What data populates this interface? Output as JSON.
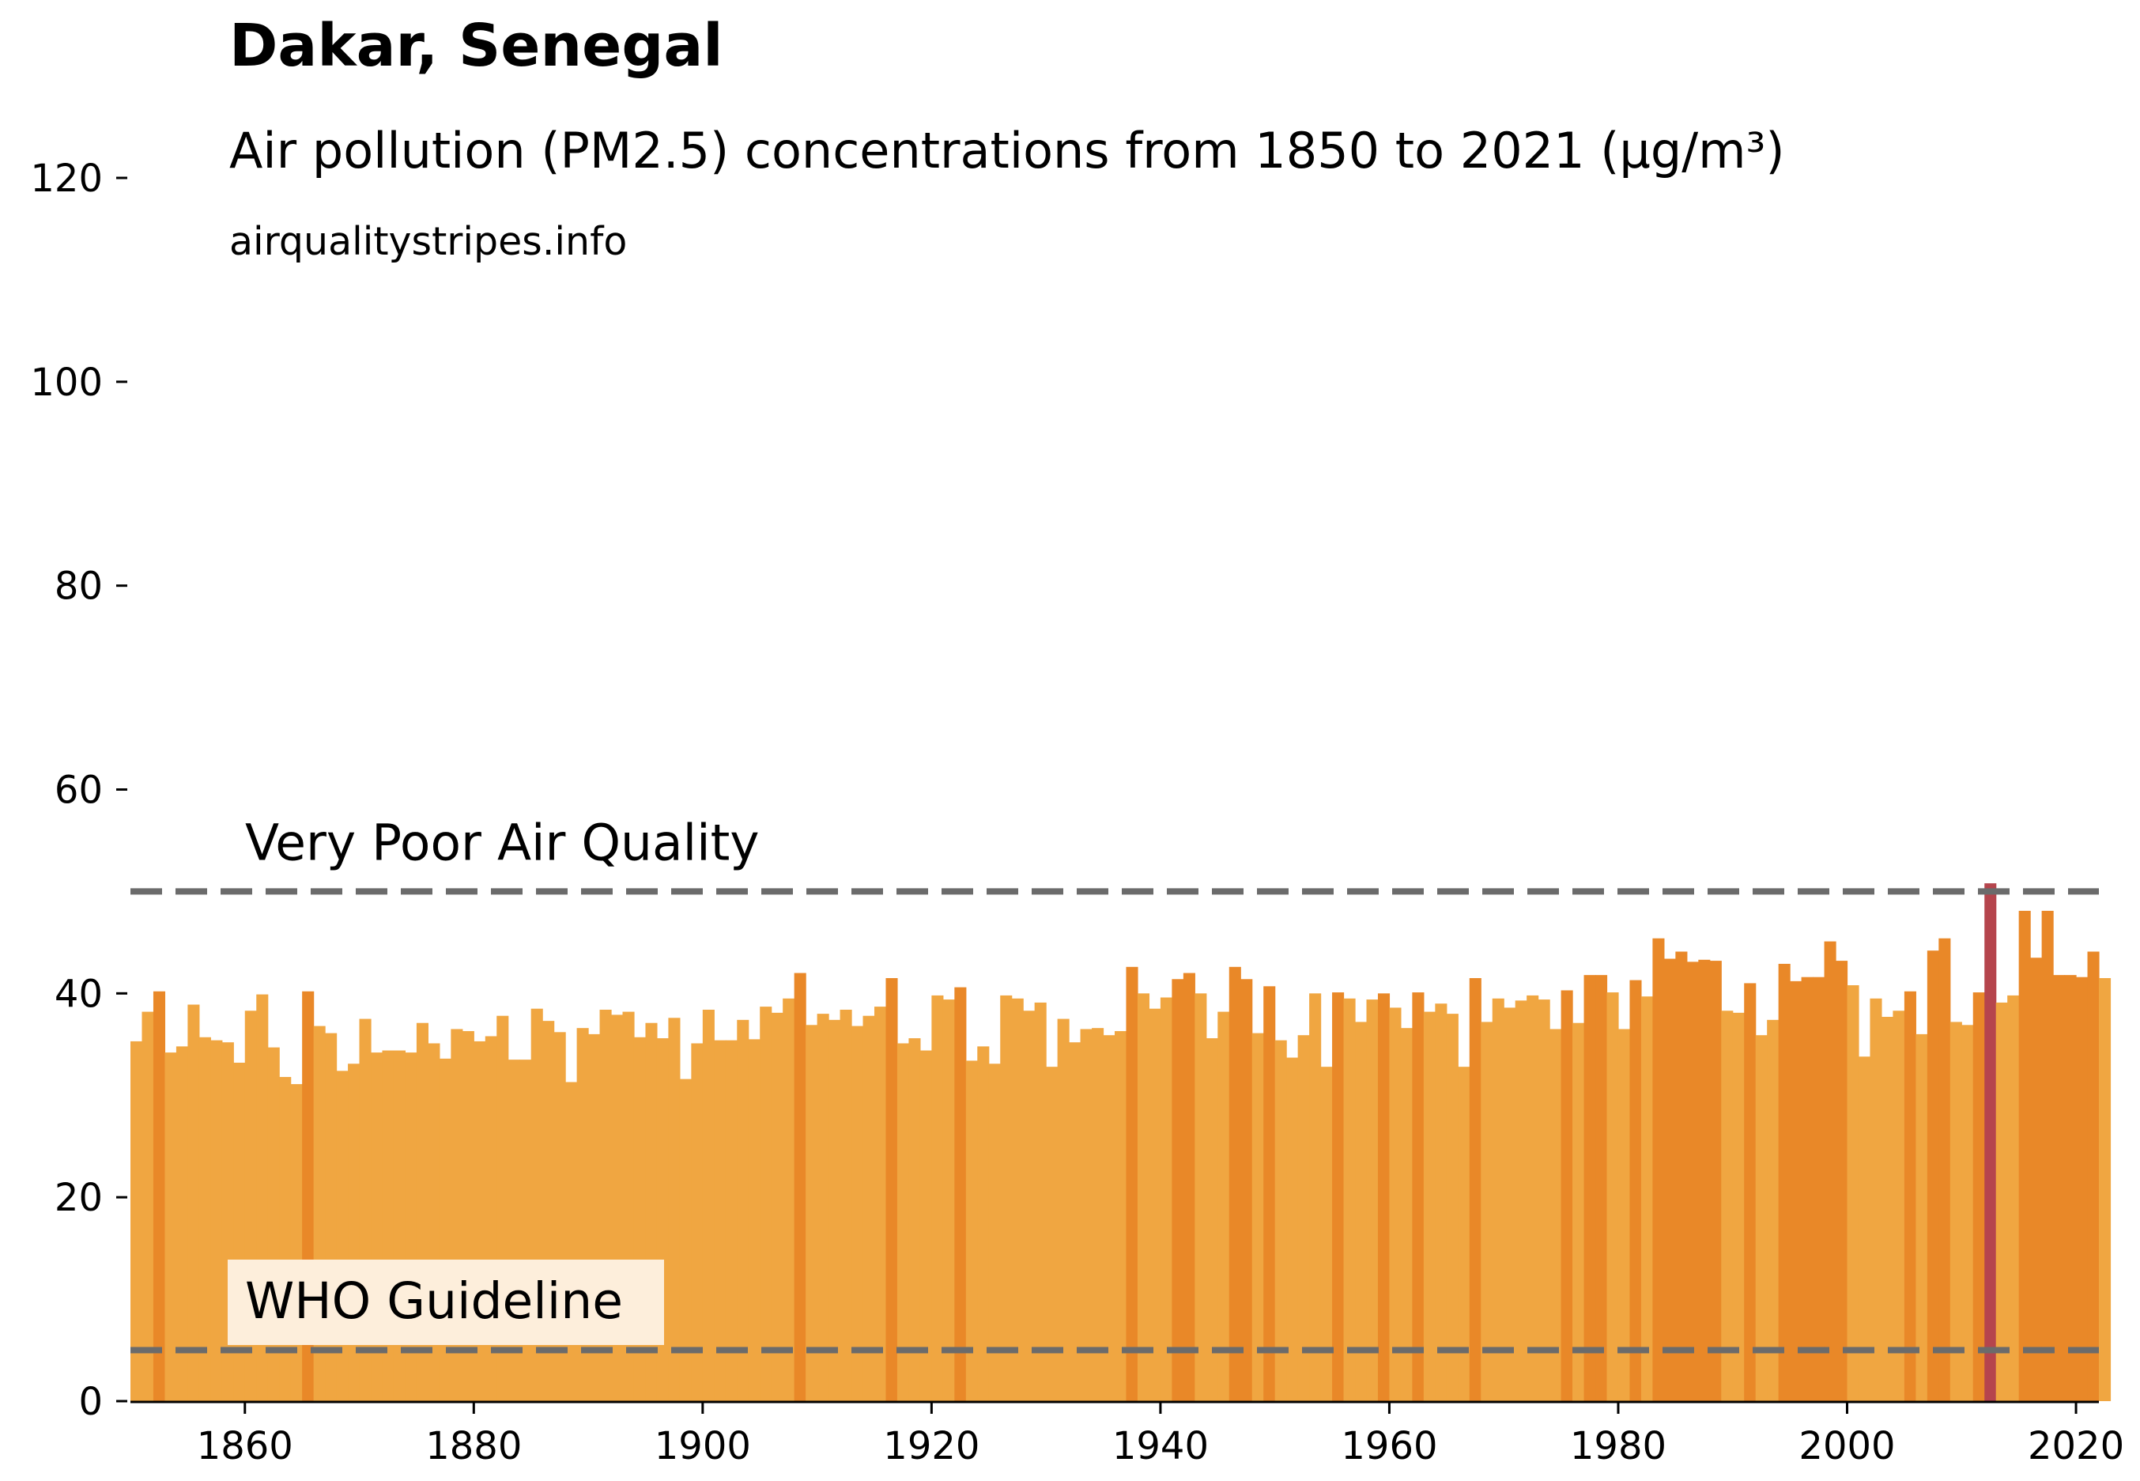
{
  "chart_data": {
    "type": "bar",
    "title": "Dakar, Senegal",
    "subtitle": "Air pollution (PM2.5) concentrations from 1850 to 2021 (µg/m³)",
    "source": "airqualitystripes.info",
    "xlabel": "",
    "ylabel": "",
    "xlim": [
      1850,
      2022
    ],
    "ylim": [
      0,
      120
    ],
    "x_ticks": [
      1860,
      1880,
      1900,
      1920,
      1940,
      1960,
      1980,
      2000,
      2020
    ],
    "y_ticks": [
      0,
      20,
      40,
      60,
      80,
      100,
      120
    ],
    "grid": false,
    "legend": "none",
    "x_start": 1850,
    "values": [
      35.3,
      38.2,
      40.2,
      34.2,
      34.8,
      38.9,
      35.7,
      35.4,
      35.2,
      33.2,
      38.3,
      39.9,
      34.7,
      31.8,
      31.1,
      40.2,
      36.8,
      36.1,
      32.4,
      33.1,
      37.5,
      34.2,
      34.4,
      34.4,
      34.2,
      37.1,
      35.1,
      33.6,
      36.5,
      36.3,
      35.3,
      35.8,
      37.8,
      33.5,
      33.5,
      38.5,
      37.3,
      36.2,
      31.3,
      36.6,
      36.0,
      38.4,
      37.9,
      38.2,
      35.7,
      37.1,
      35.6,
      37.6,
      31.6,
      35.1,
      38.4,
      35.4,
      35.4,
      37.4,
      35.5,
      38.7,
      38.1,
      39.5,
      42.0,
      36.9,
      38.0,
      37.4,
      38.4,
      36.8,
      37.8,
      38.7,
      41.5,
      35.1,
      35.6,
      34.4,
      39.8,
      39.4,
      40.6,
      33.4,
      34.8,
      33.1,
      39.8,
      39.5,
      38.3,
      39.1,
      32.8,
      37.5,
      35.2,
      36.5,
      36.6,
      35.9,
      36.3,
      42.6,
      40.0,
      38.5,
      39.6,
      41.4,
      42.0,
      40.0,
      35.6,
      38.2,
      42.6,
      41.4,
      36.1,
      40.7,
      35.4,
      33.7,
      35.9,
      40.0,
      32.8,
      40.1,
      39.5,
      37.2,
      39.4,
      40.0,
      38.6,
      36.6,
      40.1,
      38.2,
      39.0,
      38.0,
      32.8,
      41.5,
      37.2,
      39.5,
      38.6,
      39.3,
      39.8,
      39.4,
      36.5,
      40.3,
      37.1,
      41.8,
      41.8,
      40.1,
      36.5,
      41.3,
      39.7,
      45.4,
      43.4,
      44.1,
      43.1,
      43.3,
      43.2,
      38.3,
      38.1,
      41.0,
      35.9,
      37.4,
      42.9,
      41.2,
      41.6,
      41.6,
      45.1,
      43.2,
      40.8,
      33.8,
      39.5,
      37.7,
      38.3,
      40.2,
      36.0,
      44.2,
      45.4,
      37.2,
      36.9,
      40.1,
      50.8,
      39.1,
      39.8,
      48.1,
      43.5,
      48.1,
      41.8,
      41.8,
      41.6,
      44.1,
      41.5
    ],
    "highlighted_years": [
      1852,
      1865,
      1908,
      1916,
      1922,
      1937,
      1941,
      1942,
      1946,
      1947,
      1949,
      1955,
      1959,
      1962,
      1967,
      1975,
      1977,
      1978,
      1981,
      1983,
      1984,
      1985,
      1986,
      1987,
      1988,
      1991,
      1994,
      1995,
      1996,
      1997,
      1998,
      1999,
      2005,
      2007,
      2008,
      2011,
      2015,
      2016,
      2017,
      2018,
      2019,
      2020,
      2021
    ],
    "marked_year": 2012,
    "reference_lines": [
      {
        "label": "Very Poor Air Quality",
        "value": 50
      },
      {
        "label": "WHO Guideline",
        "value": 5
      }
    ],
    "colors": {
      "bar": "#f0a641",
      "bar_highlight": "#e98828",
      "marked_bar": "#b5454d",
      "reference_line": "#6b6b6b",
      "who_label_box": "#fdeedb"
    }
  }
}
